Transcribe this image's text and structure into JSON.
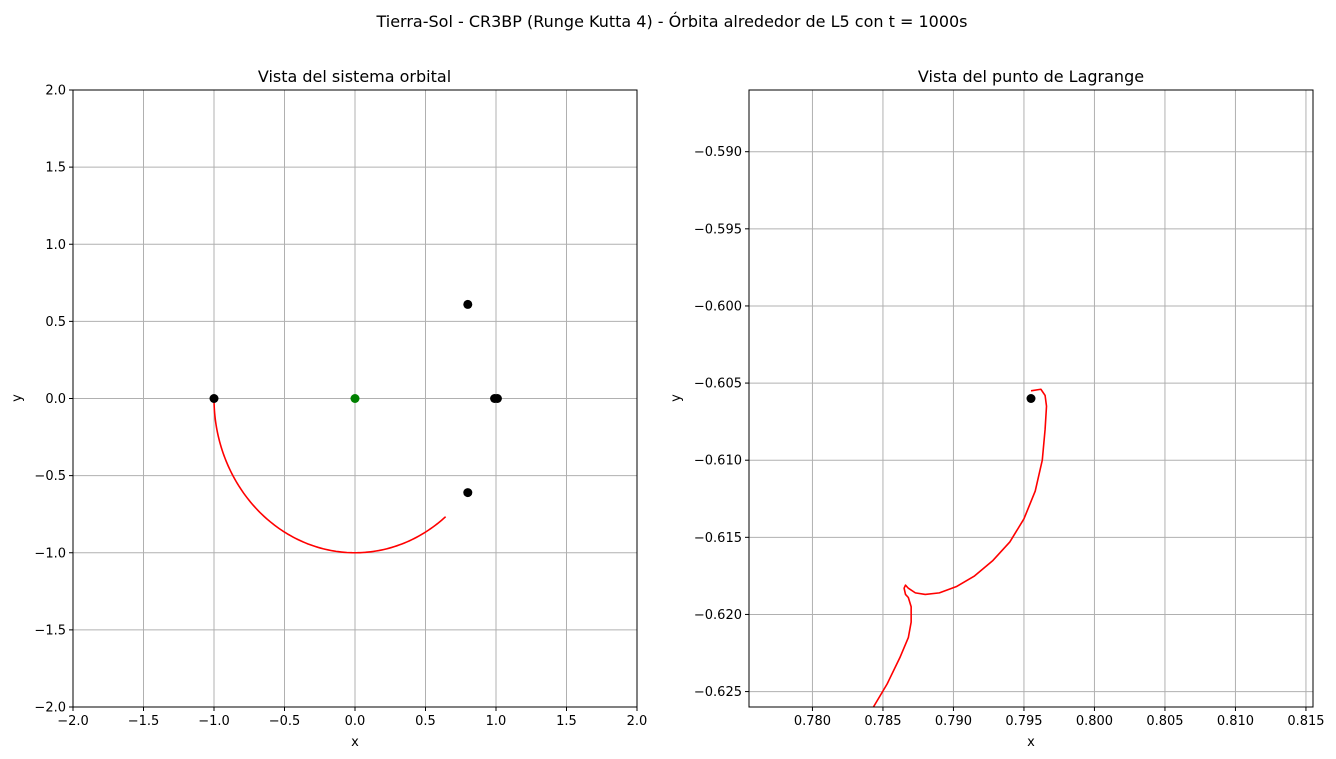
{
  "suptitle": "Tierra-Sol - CR3BP (Runge Kutta 4) - Órbita alrededor de L5 con t = 1000s",
  "colors": {
    "trajectory": "#ff0000",
    "point": "#000000",
    "center": "#008000",
    "grid": "#b0b0b0"
  },
  "chart_data": [
    {
      "type": "line",
      "title": "Vista del sistema orbital",
      "xlabel": "x",
      "ylabel": "y",
      "xlim": [
        -2.0,
        2.0
      ],
      "ylim": [
        -2.0,
        2.0
      ],
      "grid": true,
      "xticks": [
        -2.0,
        -1.5,
        -1.0,
        -0.5,
        0.0,
        0.5,
        1.0,
        1.5,
        2.0
      ],
      "yticks": [
        -2.0,
        -1.5,
        -1.0,
        -0.5,
        0.0,
        0.5,
        1.0,
        1.5,
        2.0
      ],
      "xtick_labels": [
        "−2.0",
        "−1.5",
        "−1.0",
        "−0.5",
        "0.0",
        "0.5",
        "1.0",
        "1.5",
        "2.0"
      ],
      "ytick_labels": [
        "−2.0",
        "−1.5",
        "−1.0",
        "−0.5",
        "0.0",
        "0.5",
        "1.0",
        "1.5",
        "2.0"
      ],
      "trajectory_arc": {
        "center": [
          0.0,
          0.0
        ],
        "radius": 1.0,
        "start_deg": 180,
        "end_deg": 310,
        "color": "#ff0000"
      },
      "points": [
        {
          "x": -1.0,
          "y": 0.0,
          "color": "#000000"
        },
        {
          "x": 0.0,
          "y": 0.0,
          "color": "#008000"
        },
        {
          "x": 0.8,
          "y": 0.61,
          "color": "#000000"
        },
        {
          "x": 0.8,
          "y": -0.61,
          "color": "#000000"
        },
        {
          "x": 0.99,
          "y": 0.0,
          "color": "#000000"
        },
        {
          "x": 1.01,
          "y": 0.0,
          "color": "#000000"
        }
      ]
    },
    {
      "type": "line",
      "title": "Vista del punto de Lagrange",
      "xlabel": "x",
      "ylabel": "y",
      "xlim": [
        0.7755,
        0.8155
      ],
      "ylim": [
        -0.626,
        -0.586
      ],
      "grid": true,
      "xticks": [
        0.78,
        0.785,
        0.79,
        0.795,
        0.8,
        0.805,
        0.81,
        0.815
      ],
      "yticks": [
        -0.625,
        -0.62,
        -0.615,
        -0.61,
        -0.605,
        -0.6,
        -0.595,
        -0.59
      ],
      "xtick_labels": [
        "0.780",
        "0.785",
        "0.790",
        "0.795",
        "0.800",
        "0.805",
        "0.810",
        "0.815"
      ],
      "ytick_labels": [
        "−0.625",
        "−0.620",
        "−0.615",
        "−0.610",
        "−0.605",
        "−0.600",
        "−0.595",
        "−0.590"
      ],
      "trajectory": {
        "x": [
          0.7955,
          0.7962,
          0.7965,
          0.7966,
          0.7965,
          0.7963,
          0.7958,
          0.795,
          0.794,
          0.7928,
          0.7915,
          0.7902,
          0.789,
          0.788,
          0.7873,
          0.7868,
          0.7866,
          0.7865,
          0.7866,
          0.7868,
          0.787,
          0.787,
          0.7868,
          0.7862,
          0.7853,
          0.784
        ],
        "y": [
          -0.6055,
          -0.6054,
          -0.6058,
          -0.6065,
          -0.608,
          -0.61,
          -0.612,
          -0.6138,
          -0.6153,
          -0.6165,
          -0.6175,
          -0.6182,
          -0.6186,
          -0.6187,
          -0.6186,
          -0.6183,
          -0.6181,
          -0.6183,
          -0.6187,
          -0.6189,
          -0.6195,
          -0.6205,
          -0.6215,
          -0.6228,
          -0.6245,
          -0.6265
        ],
        "color": "#ff0000"
      },
      "points": [
        {
          "x": 0.7955,
          "y": -0.606,
          "color": "#000000"
        }
      ]
    }
  ]
}
